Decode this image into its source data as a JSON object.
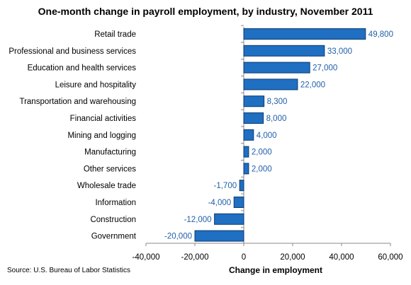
{
  "chart_data": {
    "type": "bar",
    "orientation": "horizontal",
    "title": "One-month change in payroll employment, by industry, November 2011",
    "xlabel": "Change in employment",
    "ylabel": "",
    "xlim": [
      -40000,
      60000
    ],
    "xticks": [
      -40000,
      -20000,
      0,
      20000,
      40000,
      60000
    ],
    "xtick_labels": [
      "-40,000",
      "-20,000",
      "0",
      "20,000",
      "40,000",
      "60,000"
    ],
    "grid": false,
    "legend": "none",
    "bar_color": "#1f6fc3",
    "bar_edge_color": "#0b3a6e",
    "label_color": "#1f5fa8",
    "categories": [
      "Retail trade",
      "Professional and business services",
      "Education and health services",
      "Leisure and hospitality",
      "Transportation and warehousing",
      "Financial activities",
      "Mining and logging",
      "Manufacturing",
      "Other services",
      "Wholesale trade",
      "Information",
      "Construction",
      "Government"
    ],
    "values": [
      49800,
      33000,
      27000,
      22000,
      8300,
      8000,
      4000,
      2000,
      2000,
      -1700,
      -4000,
      -12000,
      -20000
    ],
    "value_labels": [
      "49,800",
      "33,000",
      "27,000",
      "22,000",
      "8,300",
      "8,000",
      "4,000",
      "2,000",
      "2,000",
      "-1,700",
      "-4,000",
      "-12,000",
      "-20,000"
    ]
  },
  "source": "Source:  U.S. Bureau of Labor Statistics"
}
